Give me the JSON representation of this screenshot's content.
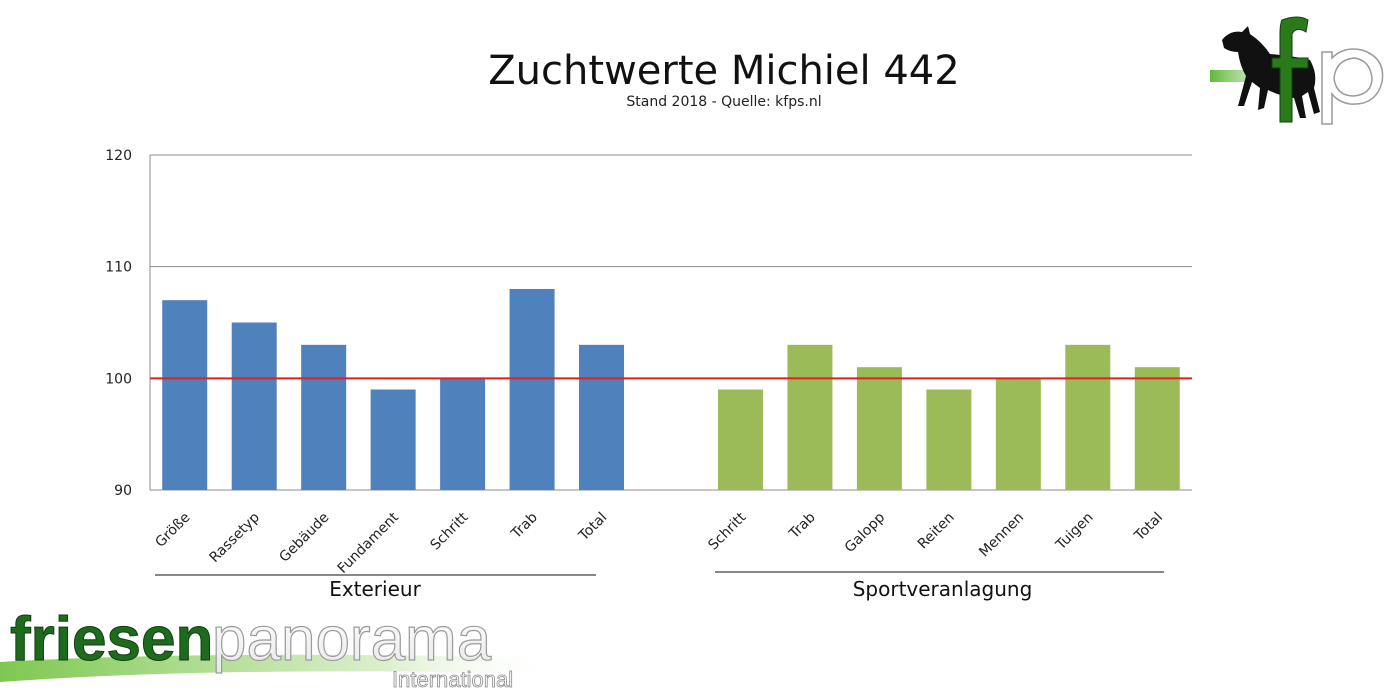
{
  "chart_data": {
    "type": "bar",
    "title": "Zuchtwerte Michiel 442",
    "subtitle": "Stand 2018 - Quelle: kfps.nl",
    "ylim": [
      90,
      120
    ],
    "yticks": [
      90,
      100,
      110,
      120
    ],
    "reference_line": 100,
    "grid": true,
    "groups": [
      {
        "name": "Exterieur",
        "color": "#4f81bd",
        "categories": [
          "Größe",
          "Rassetyp",
          "Gebäude",
          "Fundament",
          "Schritt",
          "Trab",
          "Total"
        ],
        "values": [
          107,
          105,
          103,
          99,
          100,
          108,
          103
        ]
      },
      {
        "name": "Sportveranlagung",
        "color": "#9bbb59",
        "categories": [
          "Schritt",
          "Trab",
          "Galopp",
          "Reiten",
          "Mennen",
          "Tuigen",
          "Total"
        ],
        "values": [
          99,
          103,
          101,
          99,
          100,
          103,
          101
        ]
      }
    ],
    "reference_color": "#e02020"
  },
  "branding": {
    "watermark_main": "friesen",
    "watermark_second": "panorama",
    "watermark_sub": "International",
    "logo": "horse-fp-logo"
  }
}
